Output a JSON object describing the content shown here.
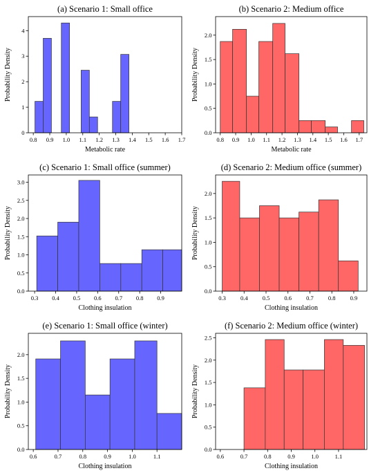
{
  "figure": {
    "colors": {
      "blue": "#6666ff",
      "red": "#ff6666"
    }
  },
  "chart_data": [
    {
      "type": "bar",
      "title": "(a) Scenario 1: Small office",
      "xlabel": "Metabolic rate",
      "ylabel": "Probability Density",
      "xlim": [
        0.77,
        1.7
      ],
      "ylim": [
        0,
        4.55
      ],
      "xticks": [
        0.8,
        0.9,
        1.0,
        1.1,
        1.2,
        1.3,
        1.4,
        1.5,
        1.6,
        1.7
      ],
      "xtick_labels": [
        "0.8",
        "0.9",
        "1.0",
        "1.1",
        "1.2",
        "1.3",
        "1.4",
        "1.5",
        "1.6",
        "1.7"
      ],
      "yticks": [
        0,
        1,
        2,
        3,
        4
      ],
      "ytick_labels": [
        "0",
        "1",
        "2",
        "3",
        "4"
      ],
      "color": "blue",
      "bins": [
        {
          "x0": 0.81,
          "x1": 0.86,
          "y": 1.23
        },
        {
          "x0": 0.86,
          "x1": 0.91,
          "y": 3.7
        },
        {
          "x0": 0.97,
          "x1": 1.02,
          "y": 4.3
        },
        {
          "x0": 1.09,
          "x1": 1.14,
          "y": 2.45
        },
        {
          "x0": 1.14,
          "x1": 1.19,
          "y": 0.62
        },
        {
          "x0": 1.28,
          "x1": 1.33,
          "y": 1.23
        },
        {
          "x0": 1.33,
          "x1": 1.38,
          "y": 3.07
        }
      ]
    },
    {
      "type": "bar",
      "title": "(b) Scenario 2: Medium office",
      "xlabel": "Metabolic rate",
      "ylabel": "Probability Density",
      "xlim": [
        0.77,
        1.75
      ],
      "ylim": [
        0,
        2.38
      ],
      "xticks": [
        0.8,
        0.9,
        1.0,
        1.1,
        1.2,
        1.3,
        1.4,
        1.5,
        1.6,
        1.7
      ],
      "xtick_labels": [
        "0.8",
        "0.9",
        "1.0",
        "1.1",
        "1.2",
        "1.3",
        "1.4",
        "1.5",
        "1.6",
        "1.7"
      ],
      "yticks": [
        0,
        0.5,
        1.0,
        1.5,
        2.0
      ],
      "ytick_labels": [
        "0.0",
        "0.5",
        "1.0",
        "1.5",
        "2.0"
      ],
      "color": "red",
      "bins": [
        {
          "x0": 0.8,
          "x1": 0.88,
          "y": 1.87
        },
        {
          "x0": 0.88,
          "x1": 0.97,
          "y": 2.12
        },
        {
          "x0": 0.97,
          "x1": 1.05,
          "y": 0.75
        },
        {
          "x0": 1.05,
          "x1": 1.14,
          "y": 1.87
        },
        {
          "x0": 1.14,
          "x1": 1.22,
          "y": 2.24
        },
        {
          "x0": 1.22,
          "x1": 1.31,
          "y": 1.62
        },
        {
          "x0": 1.31,
          "x1": 1.39,
          "y": 0.25
        },
        {
          "x0": 1.39,
          "x1": 1.48,
          "y": 0.25
        },
        {
          "x0": 1.48,
          "x1": 1.56,
          "y": 0.12
        },
        {
          "x0": 1.65,
          "x1": 1.73,
          "y": 0.25
        }
      ]
    },
    {
      "type": "bar",
      "title": "(c) Scenario 1: Small office (summer)",
      "xlabel": "Clothing insulation",
      "ylabel": "Probability Density",
      "xlim": [
        0.27,
        1.0
      ],
      "ylim": [
        0,
        3.2
      ],
      "xticks": [
        0.3,
        0.4,
        0.5,
        0.6,
        0.7,
        0.8,
        0.9
      ],
      "xtick_labels": [
        "0.3",
        "0.4",
        "0.5",
        "0.6",
        "0.7",
        "0.8",
        "0.9"
      ],
      "yticks": [
        0,
        0.5,
        1.0,
        1.5,
        2.0,
        2.5,
        3.0
      ],
      "ytick_labels": [
        "0.0",
        "0.5",
        "1.0",
        "1.5",
        "2.0",
        "2.5",
        "3.0"
      ],
      "color": "blue",
      "bins": [
        {
          "x0": 0.31,
          "x1": 0.41,
          "y": 1.52
        },
        {
          "x0": 0.41,
          "x1": 0.51,
          "y": 1.9
        },
        {
          "x0": 0.51,
          "x1": 0.61,
          "y": 3.05
        },
        {
          "x0": 0.61,
          "x1": 0.71,
          "y": 0.76
        },
        {
          "x0": 0.71,
          "x1": 0.81,
          "y": 0.76
        },
        {
          "x0": 0.81,
          "x1": 0.91,
          "y": 1.14
        },
        {
          "x0": 0.91,
          "x1": 1.0,
          "y": 1.14
        }
      ]
    },
    {
      "type": "bar",
      "title": "(d) Scenario 2: Medium office (summer)",
      "xlabel": "Clothing insulation",
      "ylabel": "Probability Density",
      "xlim": [
        0.27,
        0.96
      ],
      "ylim": [
        0,
        2.38
      ],
      "xticks": [
        0.3,
        0.4,
        0.5,
        0.6,
        0.7,
        0.8,
        0.9
      ],
      "xtick_labels": [
        "0.3",
        "0.4",
        "0.5",
        "0.6",
        "0.7",
        "0.8",
        "0.9"
      ],
      "yticks": [
        0,
        0.5,
        1.0,
        1.5,
        2.0
      ],
      "ytick_labels": [
        "0.0",
        "0.5",
        "1.0",
        "1.5",
        "2.0"
      ],
      "color": "red",
      "bins": [
        {
          "x0": 0.3,
          "x1": 0.38,
          "y": 2.25
        },
        {
          "x0": 0.38,
          "x1": 0.47,
          "y": 1.5
        },
        {
          "x0": 0.47,
          "x1": 0.56,
          "y": 1.75
        },
        {
          "x0": 0.56,
          "x1": 0.65,
          "y": 1.5
        },
        {
          "x0": 0.65,
          "x1": 0.74,
          "y": 1.62
        },
        {
          "x0": 0.74,
          "x1": 0.83,
          "y": 1.87
        },
        {
          "x0": 0.83,
          "x1": 0.92,
          "y": 0.62
        }
      ]
    },
    {
      "type": "bar",
      "title": "(e) Scenario 1: Small office (winter)",
      "xlabel": "Clothing insulation",
      "ylabel": "Probability Density",
      "xlim": [
        0.58,
        1.2
      ],
      "ylim": [
        0,
        2.45
      ],
      "xticks": [
        0.6,
        0.7,
        0.8,
        0.9,
        1.0,
        1.1
      ],
      "xtick_labels": [
        "0.6",
        "0.7",
        "0.8",
        "0.9",
        "1.0",
        "1.1"
      ],
      "yticks": [
        0,
        0.5,
        1.0,
        1.5,
        2.0
      ],
      "ytick_labels": [
        "0.0",
        "0.5",
        "1.0",
        "1.5",
        "2.0"
      ],
      "color": "blue",
      "bins": [
        {
          "x0": 0.61,
          "x1": 0.71,
          "y": 1.91
        },
        {
          "x0": 0.71,
          "x1": 0.81,
          "y": 2.29
        },
        {
          "x0": 0.81,
          "x1": 0.91,
          "y": 1.15
        },
        {
          "x0": 0.91,
          "x1": 1.01,
          "y": 1.91
        },
        {
          "x0": 1.01,
          "x1": 1.1,
          "y": 2.29
        },
        {
          "x0": 1.1,
          "x1": 1.2,
          "y": 0.76
        }
      ]
    },
    {
      "type": "bar",
      "title": "(f) Scenario 2: Medium office (winter)",
      "xlabel": "Clothing insulation",
      "ylabel": "Probability Density",
      "xlim": [
        0.58,
        1.22
      ],
      "ylim": [
        0,
        2.6
      ],
      "xticks": [
        0.6,
        0.7,
        0.8,
        0.9,
        1.0,
        1.1
      ],
      "xtick_labels": [
        "0.6",
        "0.7",
        "0.8",
        "0.9",
        "1.0",
        "1.1"
      ],
      "yticks": [
        0,
        0.5,
        1.0,
        1.5,
        2.0,
        2.5
      ],
      "ytick_labels": [
        "0.0",
        "0.5",
        "1.0",
        "1.5",
        "2.0",
        "2.5"
      ],
      "color": "red",
      "bins": [
        {
          "x0": 0.7,
          "x1": 0.79,
          "y": 1.38
        },
        {
          "x0": 0.79,
          "x1": 0.87,
          "y": 2.46
        },
        {
          "x0": 0.87,
          "x1": 0.95,
          "y": 1.78
        },
        {
          "x0": 0.95,
          "x1": 1.04,
          "y": 1.78
        },
        {
          "x0": 1.04,
          "x1": 1.12,
          "y": 2.46
        },
        {
          "x0": 1.12,
          "x1": 1.21,
          "y": 2.33
        }
      ]
    }
  ]
}
